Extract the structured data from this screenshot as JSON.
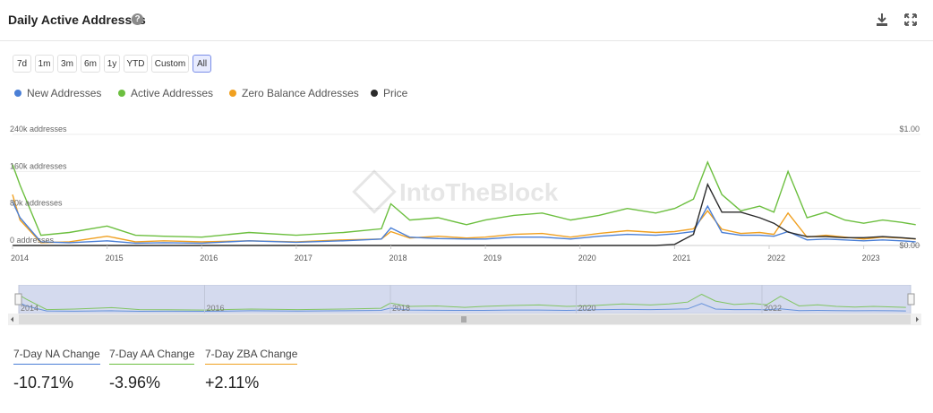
{
  "header": {
    "title": "Daily Active Addresses",
    "help_icon": "?"
  },
  "range_buttons": [
    "7d",
    "1m",
    "3m",
    "6m",
    "1y",
    "YTD",
    "Custom",
    "All"
  ],
  "active_range": "All",
  "legend": [
    {
      "label": "New Addresses",
      "color": "#4a7fd6"
    },
    {
      "label": "Active Addresses",
      "color": "#6cbf3f"
    },
    {
      "label": "Zero Balance Addresses",
      "color": "#f0a020"
    },
    {
      "label": "Price",
      "color": "#2b2b2b"
    }
  ],
  "watermark": "IntoTheBlock",
  "navigator": {
    "labels": [
      "2014",
      "2016",
      "2018",
      "2020",
      "2022"
    ]
  },
  "stats": [
    {
      "label": "7-Day NA Change",
      "value": "-10.71%",
      "color": "#4a7fd6"
    },
    {
      "label": "7-Day AA Change",
      "value": "-3.96%",
      "color": "#6cbf3f"
    },
    {
      "label": "7-Day ZBA Change",
      "value": "+2.11%",
      "color": "#f0a020"
    }
  ],
  "chart_data": {
    "type": "line",
    "y_left": {
      "ticks": [
        0,
        80000,
        160000,
        240000
      ],
      "tick_labels": [
        "0 addresses",
        "80k addresses",
        "160k addresses",
        "240k addresses"
      ],
      "range": [
        0,
        240000
      ]
    },
    "y_right": {
      "ticks": [
        0,
        1
      ],
      "tick_labels": [
        "$0.00",
        "$1.00"
      ],
      "range": [
        0,
        1
      ]
    },
    "x_labels": [
      "2014",
      "2015",
      "2016",
      "2017",
      "2018",
      "2019",
      "2020",
      "2021",
      "2022",
      "2023"
    ],
    "x": [
      2014.0,
      2014.08,
      2014.3,
      2014.6,
      2015.0,
      2015.3,
      2015.6,
      2016.0,
      2016.5,
      2017.0,
      2017.5,
      2017.9,
      2018.0,
      2018.2,
      2018.5,
      2018.8,
      2019.0,
      2019.3,
      2019.6,
      2019.9,
      2020.2,
      2020.5,
      2020.8,
      2021.0,
      2021.2,
      2021.35,
      2021.5,
      2021.7,
      2021.9,
      2022.05,
      2022.2,
      2022.4,
      2022.6,
      2022.8,
      2023.0,
      2023.2,
      2023.4,
      2023.55
    ],
    "series": [
      {
        "name": "New Addresses",
        "color": "#4a7fd6",
        "axis": "left",
        "values": [
          95000,
          60000,
          8000,
          6000,
          10000,
          5000,
          6000,
          5000,
          10000,
          7000,
          10000,
          14000,
          38000,
          18000,
          15000,
          14000,
          14000,
          18000,
          18000,
          14000,
          20000,
          24000,
          22000,
          25000,
          30000,
          85000,
          28000,
          22000,
          22000,
          20000,
          30000,
          12000,
          14000,
          12000,
          10000,
          12000,
          10000,
          8000
        ]
      },
      {
        "name": "Active Addresses",
        "color": "#6cbf3f",
        "axis": "left",
        "values": [
          175000,
          130000,
          22000,
          28000,
          42000,
          22000,
          20000,
          18000,
          28000,
          22000,
          28000,
          36000,
          90000,
          55000,
          60000,
          45000,
          55000,
          65000,
          70000,
          55000,
          65000,
          80000,
          70000,
          80000,
          100000,
          180000,
          110000,
          75000,
          85000,
          72000,
          160000,
          60000,
          72000,
          55000,
          48000,
          55000,
          50000,
          45000
        ]
      },
      {
        "name": "Zero Balance Addresses",
        "color": "#f0a020",
        "axis": "left",
        "values": [
          110000,
          55000,
          6000,
          8000,
          20000,
          8000,
          10000,
          8000,
          10000,
          8000,
          12000,
          14000,
          30000,
          16000,
          20000,
          16000,
          18000,
          24000,
          26000,
          18000,
          26000,
          32000,
          28000,
          30000,
          36000,
          75000,
          35000,
          26000,
          28000,
          24000,
          70000,
          18000,
          22000,
          18000,
          14000,
          18000,
          16000,
          14000
        ]
      },
      {
        "name": "Price",
        "color": "#2b2b2b",
        "axis": "right",
        "values": [
          0.0,
          0.0,
          0.0,
          0.0,
          0.0,
          0.0,
          0.0,
          0.0,
          0.0,
          0.0,
          0.0,
          0.0,
          0.0,
          0.0,
          0.0,
          0.0,
          0.0,
          0.0,
          0.0,
          0.0,
          0.0,
          0.0,
          0.0,
          0.01,
          0.1,
          0.55,
          0.3,
          0.3,
          0.25,
          0.2,
          0.12,
          0.08,
          0.08,
          0.07,
          0.07,
          0.08,
          0.07,
          0.06
        ]
      }
    ]
  }
}
